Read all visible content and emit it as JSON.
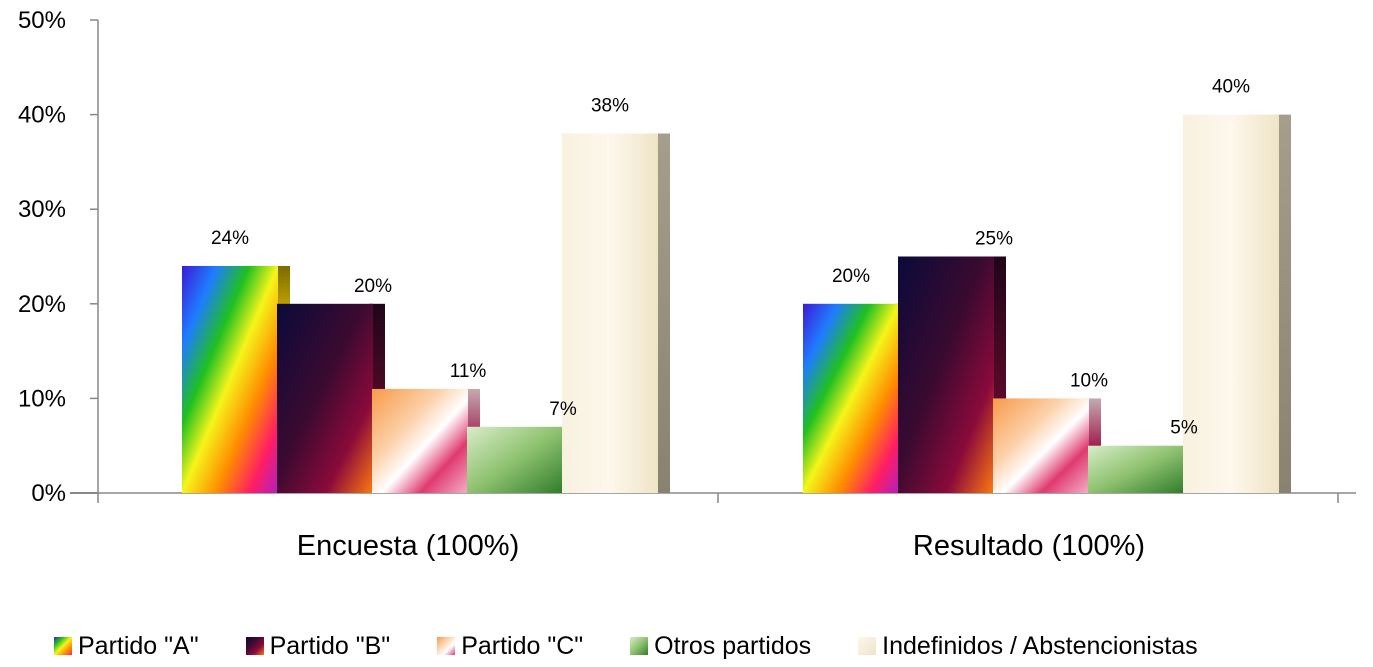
{
  "chart_data": {
    "type": "bar",
    "categories": [
      "Encuesta (100%)",
      "Resultado (100%)"
    ],
    "series": [
      {
        "name": "Partido \"A\"",
        "values": [
          24,
          20
        ],
        "labels": [
          "24%",
          "20%"
        ]
      },
      {
        "name": "Partido \"B\"",
        "values": [
          20,
          25
        ],
        "labels": [
          "20%",
          "25%"
        ]
      },
      {
        "name": "Partido \"C\"",
        "values": [
          11,
          10
        ],
        "labels": [
          "11%",
          "10%"
        ]
      },
      {
        "name": "Otros partidos",
        "values": [
          7,
          5
        ],
        "labels": [
          "7%",
          "5%"
        ]
      },
      {
        "name": "Indefinidos / Abstencionistas",
        "values": [
          38,
          40
        ],
        "labels": [
          "38%",
          "40%"
        ]
      }
    ],
    "ylim": [
      0,
      50
    ],
    "yticks": [
      "0%",
      "10%",
      "20%",
      "30%",
      "40%",
      "50%"
    ],
    "grid": false,
    "legend_position": "bottom",
    "colors": {
      "partido_a": "rainbow-gradient",
      "partido_b": "#3d0a2e",
      "partido_c": "#f7b27a",
      "otros": "#6fa34f",
      "indefinidos": "#f3ead2"
    }
  }
}
